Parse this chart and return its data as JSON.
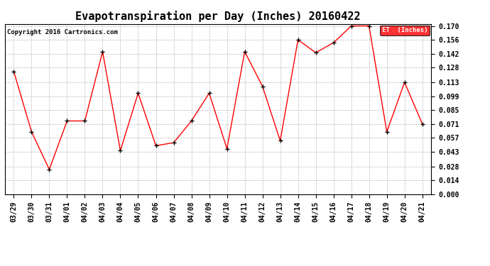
{
  "title": "Evapotranspiration per Day (Inches) 20160422",
  "copyright": "Copyright 2016 Cartronics.com",
  "legend_label": "ET  (Inches)",
  "dates": [
    "03/29",
    "03/30",
    "03/31",
    "04/01",
    "04/02",
    "04/03",
    "04/04",
    "04/05",
    "04/06",
    "04/07",
    "04/08",
    "04/09",
    "04/10",
    "04/11",
    "04/12",
    "04/13",
    "04/14",
    "04/15",
    "04/16",
    "04/17",
    "04/18",
    "04/19",
    "04/20",
    "04/21"
  ],
  "values": [
    0.124,
    0.063,
    0.025,
    0.074,
    0.074,
    0.144,
    0.044,
    0.102,
    0.049,
    0.052,
    0.074,
    0.102,
    0.046,
    0.144,
    0.109,
    0.054,
    0.156,
    0.143,
    0.153,
    0.17,
    0.17,
    0.063,
    0.113,
    0.071
  ],
  "ylim": [
    0.0,
    0.172
  ],
  "yticks": [
    0.0,
    0.014,
    0.028,
    0.043,
    0.057,
    0.071,
    0.085,
    0.099,
    0.113,
    0.128,
    0.142,
    0.156,
    0.17
  ],
  "line_color": "red",
  "marker": "+",
  "marker_color": "black",
  "bg_color": "white",
  "grid_color": "#bbbbbb",
  "legend_bg": "red",
  "legend_text_color": "white",
  "title_fontsize": 11,
  "tick_fontsize": 7,
  "copyright_fontsize": 6.5
}
